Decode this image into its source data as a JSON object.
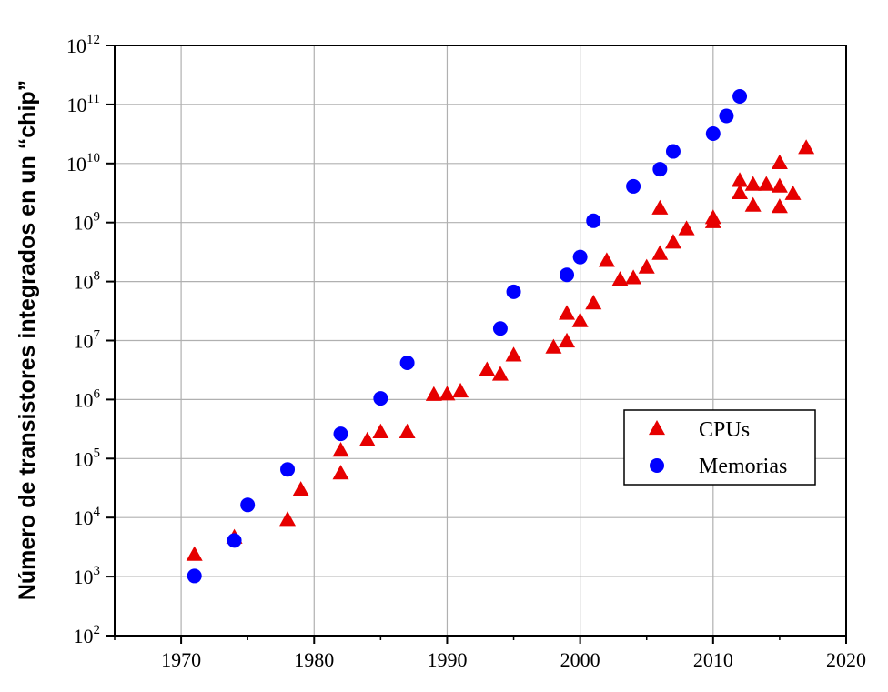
{
  "chart_data": {
    "type": "scatter",
    "ylabel": "Número de transistores integrados en un “chip”",
    "xlabel": "",
    "title": "",
    "x_ticks": [
      1970,
      1980,
      1990,
      2000,
      2010,
      2020
    ],
    "xlim": [
      1965,
      2020
    ],
    "y_scale": "log",
    "ylim": [
      100,
      1000000000000
    ],
    "y_tick_exponents": [
      2,
      3,
      4,
      5,
      6,
      7,
      8,
      9,
      10,
      11,
      12
    ],
    "y_tick_base": "10",
    "grid": true,
    "legend_position": "right",
    "series": [
      {
        "name": "CPUs",
        "marker": "triangle",
        "color": "#e60000",
        "points": [
          [
            1971,
            2300
          ],
          [
            1974,
            4500
          ],
          [
            1978,
            9000
          ],
          [
            1979,
            29000
          ],
          [
            1982,
            55000
          ],
          [
            1982,
            134000
          ],
          [
            1984,
            200000
          ],
          [
            1985,
            275000
          ],
          [
            1987,
            275000
          ],
          [
            1989,
            1180000
          ],
          [
            1990,
            1200000
          ],
          [
            1991,
            1350000
          ],
          [
            1993,
            3100000
          ],
          [
            1994,
            2600000
          ],
          [
            1995,
            5500000
          ],
          [
            1998,
            7500000
          ],
          [
            1999,
            9500000
          ],
          [
            1999,
            28000000
          ],
          [
            2000,
            21000000
          ],
          [
            2001,
            42000000
          ],
          [
            2002,
            220000000
          ],
          [
            2003,
            105000000
          ],
          [
            2004,
            112000000
          ],
          [
            2005,
            170000000
          ],
          [
            2006,
            290000000
          ],
          [
            2006,
            1700000000
          ],
          [
            2007,
            450000000
          ],
          [
            2008,
            760000000
          ],
          [
            2010,
            1170000000
          ],
          [
            2010,
            1000000000
          ],
          [
            2012,
            5000000000
          ],
          [
            2012,
            3100000000
          ],
          [
            2013,
            4300000000
          ],
          [
            2013,
            1900000000
          ],
          [
            2014,
            4300000000
          ],
          [
            2015,
            10000000000
          ],
          [
            2015,
            4000000000
          ],
          [
            2015,
            1800000000
          ],
          [
            2016,
            3000000000
          ],
          [
            2017,
            18000000000
          ]
        ]
      },
      {
        "name": "Memorias",
        "marker": "circle",
        "color": "#0000ff",
        "points": [
          [
            1971,
            1024
          ],
          [
            1974,
            4096
          ],
          [
            1975,
            16384
          ],
          [
            1978,
            65536
          ],
          [
            1982,
            262144
          ],
          [
            1985,
            1048576
          ],
          [
            1987,
            4194304
          ],
          [
            1994,
            16000000
          ],
          [
            1995,
            67000000
          ],
          [
            1999,
            130000000
          ],
          [
            2000,
            260000000
          ],
          [
            2001,
            1070000000
          ],
          [
            2004,
            4100000000
          ],
          [
            2006,
            8000000000
          ],
          [
            2007,
            16000000000
          ],
          [
            2010,
            32000000000
          ],
          [
            2011,
            64000000000
          ],
          [
            2012,
            137000000000
          ]
        ]
      }
    ]
  }
}
